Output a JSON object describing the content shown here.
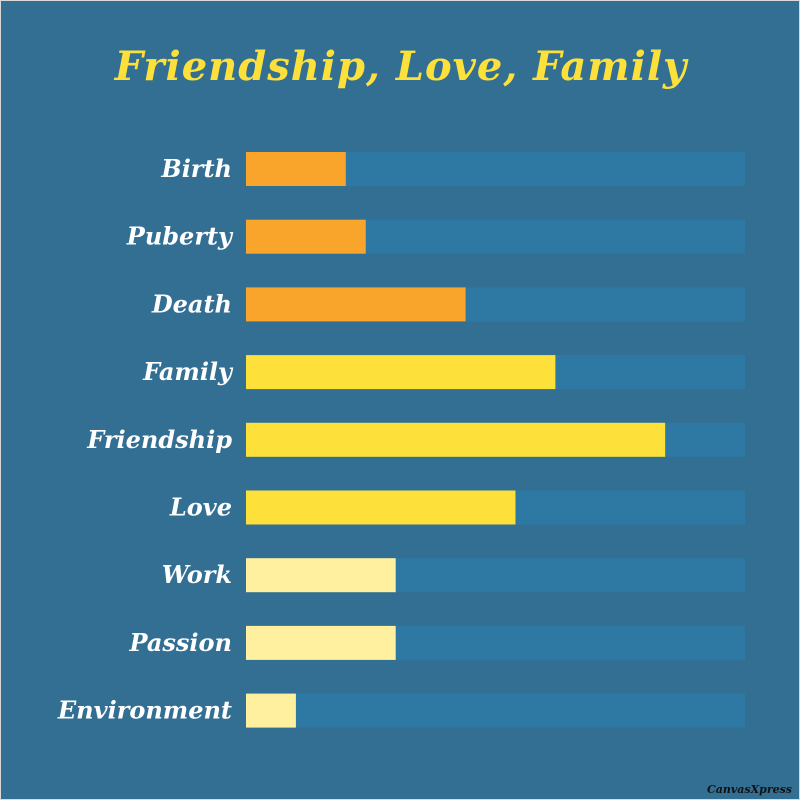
{
  "chart_data": {
    "type": "bar",
    "orientation": "horizontal",
    "title": "Friendship, Love, Family",
    "categories": [
      "Birth",
      "Puberty",
      "Death",
      "Family",
      "Friendship",
      "Love",
      "Work",
      "Passion",
      "Environment"
    ],
    "values": [
      2,
      2.4,
      4.4,
      6.2,
      8.4,
      5.4,
      3,
      3,
      1
    ],
    "xlim": [
      0,
      10
    ],
    "grid": false,
    "legend": "none",
    "bar_colors": [
      "#f9a52b",
      "#f9a52b",
      "#f9a52b",
      "#fde13a",
      "#fde13a",
      "#fde13a",
      "#fff0a0",
      "#fff0a0",
      "#fff0a0"
    ],
    "track_color": "#2e79a3",
    "background_color": "#336f93",
    "title_color": "#fde13a",
    "label_color": "#ffffff"
  },
  "watermark": "CanvasXpress"
}
